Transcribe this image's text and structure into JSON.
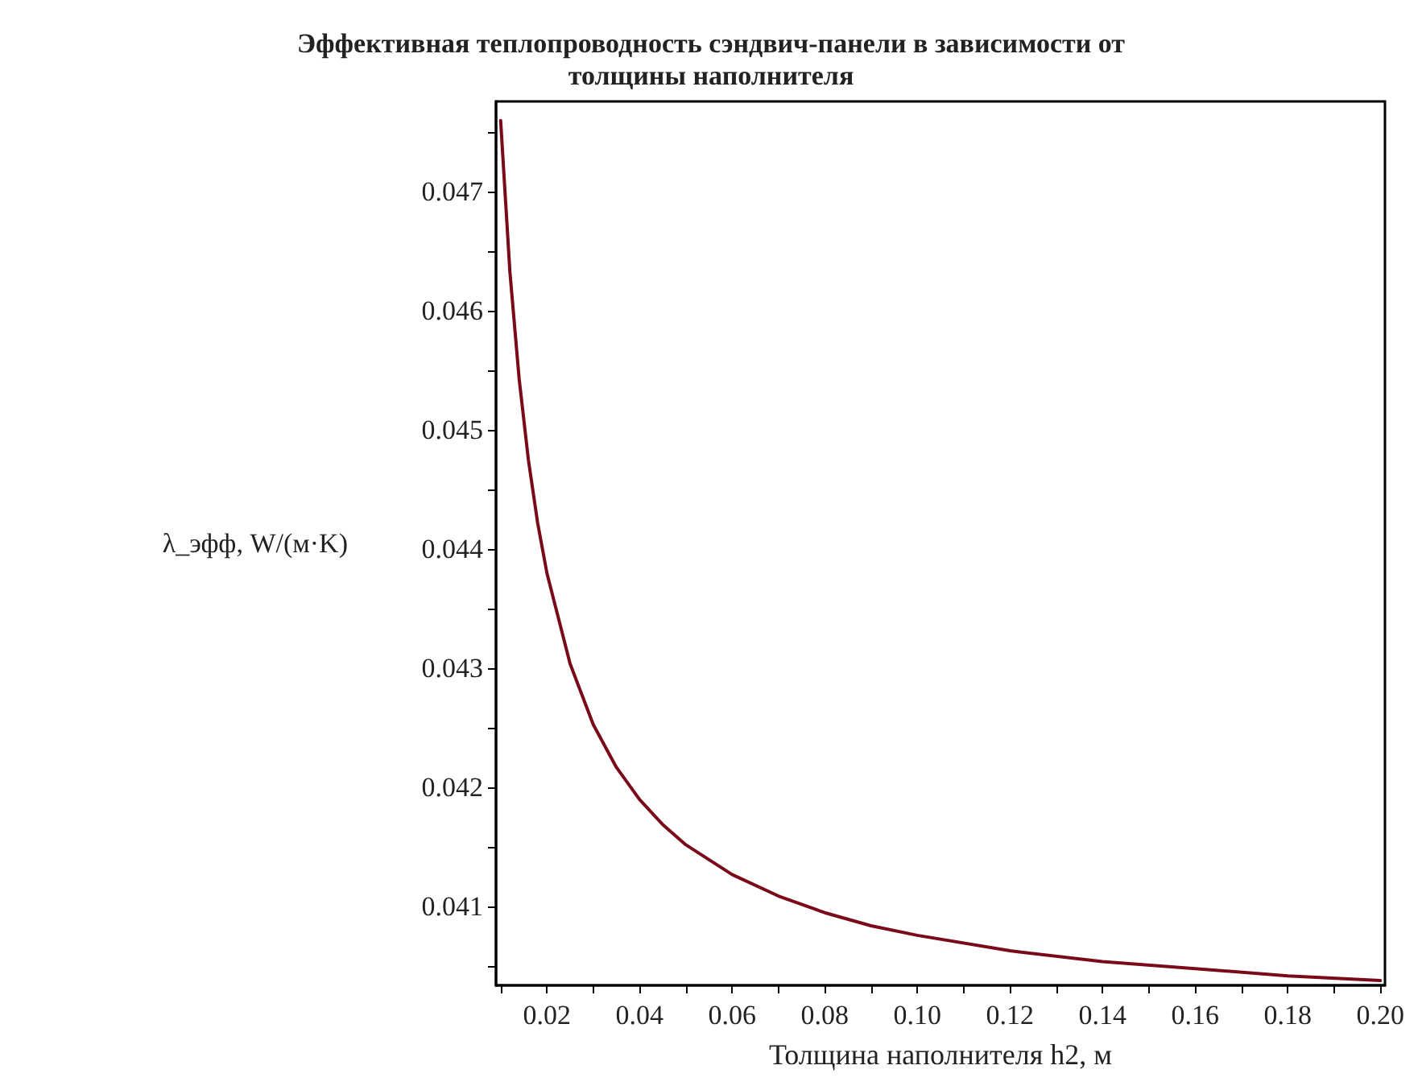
{
  "chart_data": {
    "type": "line",
    "title": "Эффективная теплопроводность сэндвич-панели в зависимости от\nтолщины наполнителя",
    "xlabel": "Толщина наполнителя h2, м",
    "ylabel": "λ_эфф, W/(м·K)",
    "x": [
      0.01,
      0.012,
      0.014,
      0.016,
      0.018,
      0.02,
      0.025,
      0.03,
      0.035,
      0.04,
      0.045,
      0.05,
      0.06,
      0.07,
      0.08,
      0.09,
      0.1,
      0.12,
      0.14,
      0.16,
      0.18,
      0.2
    ],
    "series": [
      {
        "color": "#7a0a1a",
        "values": [
          0.0476,
          0.04633,
          0.04543,
          0.04475,
          0.04422,
          0.0438,
          0.04304,
          0.04253,
          0.04217,
          0.0419,
          0.04169,
          0.04152,
          0.04127,
          0.04109,
          0.04095,
          0.04084,
          0.04076,
          0.04063,
          0.04054,
          0.04048,
          0.04042,
          0.04038
        ]
      }
    ],
    "xlim": [
      0.009,
      0.201
    ],
    "ylim": [
      0.04034,
      0.04776
    ],
    "xticks": [
      {
        "value": 0.01,
        "label": null
      },
      {
        "value": 0.02,
        "label": "0.02"
      },
      {
        "value": 0.03,
        "label": null
      },
      {
        "value": 0.04,
        "label": "0.04"
      },
      {
        "value": 0.05,
        "label": null
      },
      {
        "value": 0.06,
        "label": "0.06"
      },
      {
        "value": 0.07,
        "label": null
      },
      {
        "value": 0.08,
        "label": "0.08"
      },
      {
        "value": 0.09,
        "label": null
      },
      {
        "value": 0.1,
        "label": "0.10"
      },
      {
        "value": 0.11,
        "label": null
      },
      {
        "value": 0.12,
        "label": "0.12"
      },
      {
        "value": 0.13,
        "label": null
      },
      {
        "value": 0.14,
        "label": "0.14"
      },
      {
        "value": 0.15,
        "label": null
      },
      {
        "value": 0.16,
        "label": "0.16"
      },
      {
        "value": 0.17,
        "label": null
      },
      {
        "value": 0.18,
        "label": "0.18"
      },
      {
        "value": 0.19,
        "label": null
      },
      {
        "value": 0.2,
        "label": "0.20"
      }
    ],
    "yticks": [
      {
        "value": 0.0405,
        "label": null
      },
      0.041,
      {
        "value": 0.0415,
        "label": null
      },
      0.042,
      {
        "value": 0.0425,
        "label": null
      },
      0.043,
      {
        "value": 0.0435,
        "label": null
      },
      0.044,
      {
        "value": 0.0445,
        "label": null
      },
      0.045,
      {
        "value": 0.0455,
        "label": null
      },
      0.046,
      {
        "value": 0.0465,
        "label": null
      },
      0.047,
      {
        "value": 0.0475,
        "label": null
      }
    ],
    "grid": false,
    "marker": "none",
    "line_style": "solid"
  }
}
